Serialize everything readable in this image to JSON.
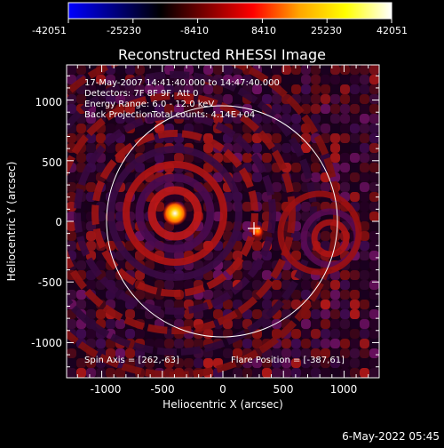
{
  "colorbar": {
    "colors": [
      "#0000ff",
      "#000080",
      "#000000",
      "#800000",
      "#ff0000",
      "#ffa500",
      "#ffff00",
      "#ffffff"
    ],
    "ticks": [
      "-42051",
      "-25230",
      "-8410",
      "8410",
      "25230",
      "42051"
    ]
  },
  "title": "Reconstructed RHESSI Image",
  "info": {
    "line1": "17-May-2007 14:41:40.000 to 14:47:40.000",
    "line2": "Detectors: 7F 8F 9F, Att 0",
    "line3": "Energy Range: 6.0 - 12.0 keV",
    "line4_left": "Back Projection",
    "line4_right": "Total counts: 4.14E+04"
  },
  "axes": {
    "xlabel": "Heliocentric X (arcsec)",
    "ylabel": "Heliocentric Y (arcsec)",
    "xticks": [
      "-1000",
      "-500",
      "0",
      "500",
      "1000"
    ],
    "yticks": [
      "1000",
      "500",
      "0",
      "-500",
      "-1000"
    ],
    "xrange": [
      -1290,
      1290
    ],
    "yrange": [
      -1290,
      1290
    ]
  },
  "footer": {
    "spin_axis": "Spin Axis = [262,-63]",
    "flare_position": "Flare Position = [-387,61]"
  },
  "date_stamp": "6-May-2022 05:45",
  "image_style": {
    "solar_limb": "white circle",
    "source_marker": "white cross"
  }
}
